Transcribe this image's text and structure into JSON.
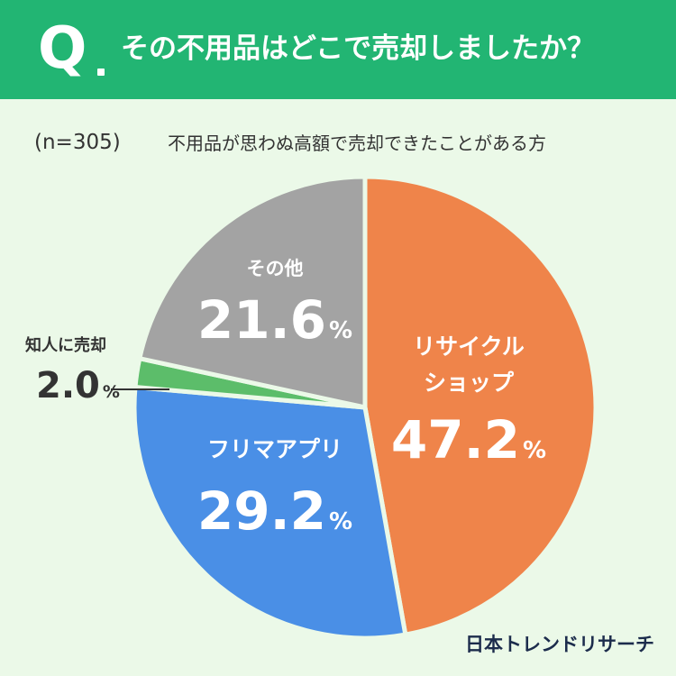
{
  "header": {
    "q_letter": "Q",
    "question": "その不用品はどこで売却しましたか？"
  },
  "sample": "(n=305)",
  "subtitle": "不用品が思わぬ高額で売却できたことがある方",
  "brand": "日本トレンドリサーチ",
  "chart_data": {
    "type": "pie",
    "title": "その不用品はどこで売却しましたか？",
    "subtitle": "不用品が思わぬ高額で売却できたことがある方",
    "sample_size": "(n=305)",
    "start_angle": "12 o'clock",
    "direction": "clockwise",
    "slices": [
      {
        "label": [
          "リサイクル",
          "ショップ"
        ],
        "value": 47.2,
        "value_text": "47.2",
        "color": "#ef844a"
      },
      {
        "label": [
          "フリマアプリ"
        ],
        "value": 29.2,
        "value_text": "29.2",
        "color": "#4a8fe6"
      },
      {
        "label": [
          "知人に売却"
        ],
        "value": 2.0,
        "value_text": "2.0",
        "color": "#5cbd6a"
      },
      {
        "label": [
          "その他"
        ],
        "value": 21.6,
        "value_text": "21.6",
        "color": "#a3a3a3"
      }
    ],
    "unit": "%"
  }
}
